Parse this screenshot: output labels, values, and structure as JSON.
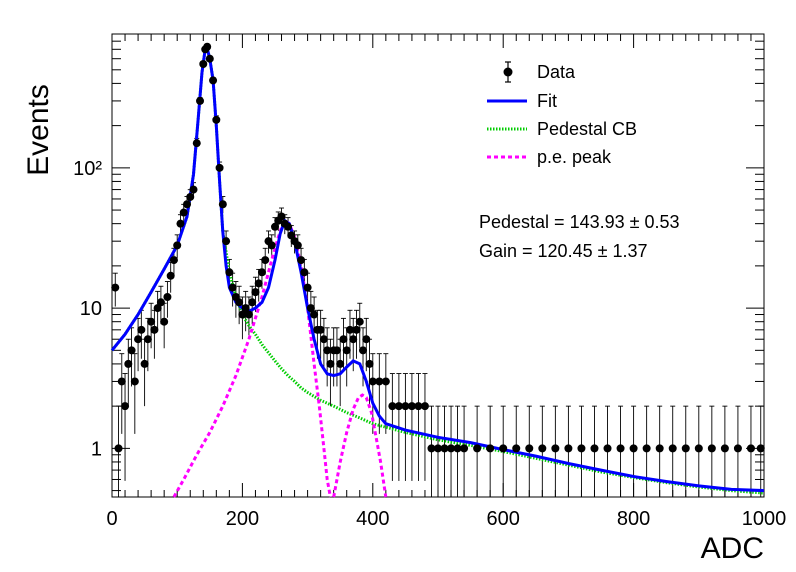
{
  "chart_data": {
    "type": "scatter",
    "title": "",
    "xlabel": "ADC",
    "ylabel": "Events",
    "xlim": [
      0,
      1000
    ],
    "ylim": [
      0.45,
      900
    ],
    "yscale": "log",
    "grid": false,
    "legend_position": "top-right",
    "x_ticks": [
      "0",
      "200",
      "400",
      "600",
      "800",
      "1000"
    ],
    "y_ticks": [
      {
        "value": 1,
        "label": "1"
      },
      {
        "value": 10,
        "label": "10"
      },
      {
        "value": 100,
        "label": "10²"
      }
    ],
    "annotations": [
      "Pedestal = 143.93 ± 0.53",
      "Gain = 120.45 ± 1.37"
    ],
    "series": [
      {
        "name": "Data",
        "kind": "points-with-errors",
        "color": "#000000",
        "points": [
          [
            5,
            14
          ],
          [
            10,
            1
          ],
          [
            15,
            3
          ],
          [
            20,
            2
          ],
          [
            25,
            4
          ],
          [
            30,
            5
          ],
          [
            35,
            3
          ],
          [
            40,
            6
          ],
          [
            45,
            7
          ],
          [
            50,
            4
          ],
          [
            55,
            6
          ],
          [
            60,
            8
          ],
          [
            65,
            7
          ],
          [
            70,
            10
          ],
          [
            75,
            11
          ],
          [
            80,
            8
          ],
          [
            85,
            12
          ],
          [
            90,
            17
          ],
          [
            95,
            22
          ],
          [
            100,
            28
          ],
          [
            105,
            40
          ],
          [
            110,
            48
          ],
          [
            115,
            55
          ],
          [
            120,
            62
          ],
          [
            125,
            70
          ],
          [
            130,
            150
          ],
          [
            135,
            300
          ],
          [
            140,
            550
          ],
          [
            143,
            700
          ],
          [
            146,
            730
          ],
          [
            150,
            600
          ],
          [
            155,
            420
          ],
          [
            160,
            220
          ],
          [
            165,
            100
          ],
          [
            170,
            55
          ],
          [
            175,
            30
          ],
          [
            180,
            18
          ],
          [
            185,
            14
          ],
          [
            190,
            12
          ],
          [
            195,
            11
          ],
          [
            200,
            9
          ],
          [
            205,
            10
          ],
          [
            210,
            9
          ],
          [
            215,
            11
          ],
          [
            220,
            13
          ],
          [
            225,
            15
          ],
          [
            230,
            18
          ],
          [
            235,
            22
          ],
          [
            240,
            30
          ],
          [
            245,
            28
          ],
          [
            250,
            38
          ],
          [
            255,
            42
          ],
          [
            260,
            45
          ],
          [
            265,
            40
          ],
          [
            270,
            38
          ],
          [
            275,
            33
          ],
          [
            280,
            30
          ],
          [
            285,
            28
          ],
          [
            290,
            22
          ],
          [
            295,
            18
          ],
          [
            300,
            14
          ],
          [
            305,
            10
          ],
          [
            310,
            9
          ],
          [
            315,
            7
          ],
          [
            320,
            7
          ],
          [
            325,
            6
          ],
          [
            330,
            5
          ],
          [
            335,
            4
          ],
          [
            340,
            5
          ],
          [
            345,
            5
          ],
          [
            350,
            4
          ],
          [
            355,
            6
          ],
          [
            360,
            5
          ],
          [
            365,
            7
          ],
          [
            370,
            6
          ],
          [
            375,
            7
          ],
          [
            380,
            8
          ],
          [
            385,
            5
          ],
          [
            390,
            6
          ],
          [
            395,
            4
          ],
          [
            400,
            3
          ],
          [
            410,
            3
          ],
          [
            420,
            3
          ],
          [
            430,
            2
          ],
          [
            440,
            2
          ],
          [
            450,
            2
          ],
          [
            460,
            2
          ],
          [
            470,
            2
          ],
          [
            480,
            2
          ],
          [
            490,
            1
          ],
          [
            500,
            1
          ],
          [
            510,
            1
          ],
          [
            520,
            1
          ],
          [
            530,
            1
          ],
          [
            540,
            1
          ],
          [
            560,
            1
          ],
          [
            580,
            1
          ],
          [
            600,
            1
          ],
          [
            620,
            1
          ],
          [
            640,
            1
          ],
          [
            660,
            1
          ],
          [
            680,
            1
          ],
          [
            700,
            1
          ],
          [
            720,
            1
          ],
          [
            740,
            1
          ],
          [
            760,
            1
          ],
          [
            780,
            1
          ],
          [
            800,
            1
          ],
          [
            820,
            1
          ],
          [
            840,
            1
          ],
          [
            860,
            1
          ],
          [
            880,
            1
          ],
          [
            900,
            1
          ],
          [
            920,
            1
          ],
          [
            940,
            1
          ],
          [
            960,
            1
          ],
          [
            980,
            1
          ],
          [
            995,
            1
          ]
        ]
      },
      {
        "name": "Fit",
        "kind": "solid-line",
        "color": "#0000ff",
        "points": [
          [
            0,
            5
          ],
          [
            20,
            6.5
          ],
          [
            40,
            9
          ],
          [
            60,
            13
          ],
          [
            80,
            19
          ],
          [
            100,
            28
          ],
          [
            115,
            45
          ],
          [
            125,
            90
          ],
          [
            132,
            220
          ],
          [
            138,
            480
          ],
          [
            143,
            700
          ],
          [
            146,
            710
          ],
          [
            150,
            600
          ],
          [
            155,
            420
          ],
          [
            160,
            200
          ],
          [
            165,
            80
          ],
          [
            170,
            35
          ],
          [
            175,
            20
          ],
          [
            180,
            14
          ],
          [
            190,
            11
          ],
          [
            200,
            10
          ],
          [
            210,
            9.5
          ],
          [
            220,
            10
          ],
          [
            230,
            11
          ],
          [
            240,
            14
          ],
          [
            250,
            22
          ],
          [
            258,
            34
          ],
          [
            265,
            42
          ],
          [
            272,
            40
          ],
          [
            280,
            30
          ],
          [
            290,
            18
          ],
          [
            300,
            10
          ],
          [
            310,
            6
          ],
          [
            320,
            4
          ],
          [
            330,
            3.4
          ],
          [
            340,
            3.3
          ],
          [
            350,
            3.4
          ],
          [
            360,
            3.8
          ],
          [
            370,
            4.2
          ],
          [
            380,
            4
          ],
          [
            390,
            3
          ],
          [
            400,
            2.1
          ],
          [
            410,
            1.7
          ],
          [
            420,
            1.5
          ],
          [
            450,
            1.35
          ],
          [
            500,
            1.2
          ],
          [
            550,
            1.1
          ],
          [
            600,
            0.98
          ],
          [
            650,
            0.88
          ],
          [
            700,
            0.78
          ],
          [
            750,
            0.7
          ],
          [
            800,
            0.63
          ],
          [
            850,
            0.58
          ],
          [
            900,
            0.54
          ],
          [
            950,
            0.51
          ],
          [
            1000,
            0.5
          ]
        ]
      },
      {
        "name": "Pedestal CB",
        "kind": "dotted-line",
        "color": "#00cc00",
        "points": [
          [
            0,
            5
          ],
          [
            20,
            6.5
          ],
          [
            40,
            9
          ],
          [
            60,
            13
          ],
          [
            80,
            19
          ],
          [
            100,
            28
          ],
          [
            115,
            45
          ],
          [
            125,
            90
          ],
          [
            132,
            220
          ],
          [
            138,
            480
          ],
          [
            143,
            700
          ],
          [
            146,
            710
          ],
          [
            150,
            600
          ],
          [
            155,
            420
          ],
          [
            160,
            200
          ],
          [
            165,
            80
          ],
          [
            170,
            35
          ],
          [
            180,
            18
          ],
          [
            190,
            12
          ],
          [
            200,
            9
          ],
          [
            210,
            7.5
          ],
          [
            220,
            6.5
          ],
          [
            230,
            5.5
          ],
          [
            240,
            4.8
          ],
          [
            250,
            4.2
          ],
          [
            260,
            3.7
          ],
          [
            270,
            3.3
          ],
          [
            280,
            3
          ],
          [
            290,
            2.7
          ],
          [
            300,
            2.5
          ],
          [
            320,
            2.2
          ],
          [
            340,
            2
          ],
          [
            360,
            1.8
          ],
          [
            380,
            1.65
          ],
          [
            400,
            1.5
          ],
          [
            450,
            1.3
          ],
          [
            500,
            1.15
          ],
          [
            550,
            1.05
          ],
          [
            600,
            0.95
          ],
          [
            650,
            0.85
          ],
          [
            700,
            0.76
          ],
          [
            750,
            0.68
          ],
          [
            800,
            0.62
          ],
          [
            850,
            0.57
          ],
          [
            900,
            0.53
          ],
          [
            950,
            0.5
          ],
          [
            1000,
            0.48
          ]
        ]
      },
      {
        "name": "p.e. peak",
        "kind": "dashed-line",
        "color": "#ff00ff",
        "segments": [
          [
            [
              95,
              0.45
            ],
            [
              110,
              0.6
            ],
            [
              130,
              0.9
            ],
            [
              150,
              1.3
            ],
            [
              170,
              2
            ],
            [
              190,
              3.3
            ],
            [
              210,
              6
            ],
            [
              230,
              12
            ],
            [
              245,
              22
            ],
            [
              255,
              32
            ],
            [
              262,
              40
            ],
            [
              266,
              42
            ],
            [
              272,
              40
            ],
            [
              280,
              32
            ],
            [
              290,
              20
            ],
            [
              300,
              10
            ],
            [
              310,
              4
            ],
            [
              318,
              2
            ],
            [
              325,
              1
            ],
            [
              330,
              0.6
            ],
            [
              335,
              0.45
            ]
          ],
          [
            [
              340,
              0.45
            ],
            [
              350,
              0.8
            ],
            [
              360,
              1.3
            ],
            [
              370,
              1.9
            ],
            [
              378,
              2.3
            ],
            [
              384,
              2.4
            ],
            [
              390,
              2.3
            ],
            [
              398,
              1.8
            ],
            [
              405,
              1.2
            ],
            [
              412,
              0.8
            ],
            [
              420,
              0.45
            ]
          ]
        ]
      }
    ]
  }
}
